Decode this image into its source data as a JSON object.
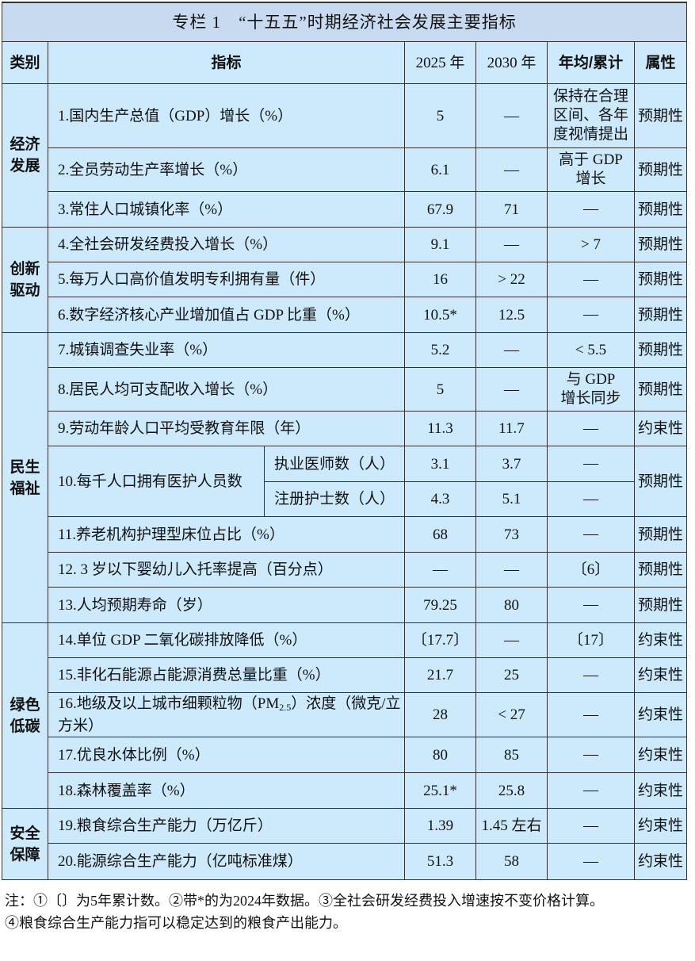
{
  "title": "专栏 1　“十五五”时期经济社会发展主要指标",
  "headers": {
    "category": "类别",
    "indicator": "指标",
    "y2025": "2025 年",
    "y2030": "2030 年",
    "annual": "年均/累计",
    "attribute": "属性"
  },
  "categories": [
    {
      "label": "经济\n发展",
      "rows": 3
    },
    {
      "label": "创新\n驱动",
      "rows": 3
    },
    {
      "label": "民生\n福祉",
      "rows": 8
    },
    {
      "label": "绿色\n低碳",
      "rows": 5
    },
    {
      "label": "安全\n保障",
      "rows": 2
    }
  ],
  "rows": [
    {
      "indicator": "1.国内生产总值（GDP）增长（%）",
      "y2025": "5",
      "y2030": "—",
      "annual": "保持在合理区间、各年度视情提出",
      "attribute": "预期性"
    },
    {
      "indicator": "2.全员劳动生产率增长（%）",
      "y2025": "6.1",
      "y2030": "—",
      "annual": "高于 GDP\n增长",
      "attribute": "预期性"
    },
    {
      "indicator": "3.常住人口城镇化率（%）",
      "y2025": "67.9",
      "y2030": "71",
      "annual": "—",
      "attribute": "预期性"
    },
    {
      "indicator": "4.全社会研发经费投入增长（%）",
      "y2025": "9.1",
      "y2030": "—",
      "annual": "> 7",
      "attribute": "预期性"
    },
    {
      "indicator": "5.每万人口高价值发明专利拥有量（件）",
      "y2025": "16",
      "y2030": "> 22",
      "annual": "—",
      "attribute": "预期性"
    },
    {
      "indicator": "6.数字经济核心产业增加值占 GDP 比重（%）",
      "y2025": "10.5*",
      "y2030": "12.5",
      "annual": "—",
      "attribute": "预期性"
    },
    {
      "indicator": "7.城镇调查失业率（%）",
      "y2025": "5.2",
      "y2030": "—",
      "annual": "< 5.5",
      "attribute": "预期性"
    },
    {
      "indicator": "8.居民人均可支配收入增长（%）",
      "y2025": "5",
      "y2030": "—",
      "annual": "与 GDP\n增长同步",
      "attribute": "预期性"
    },
    {
      "indicator": "9.劳动年龄人口平均受教育年限（年）",
      "y2025": "11.3",
      "y2030": "11.7",
      "annual": "—",
      "attribute": "约束性"
    },
    {
      "indicator": "10.每千人口拥有医护人员数",
      "sub": "执业医师数（人）",
      "y2025": "3.1",
      "y2030": "3.7",
      "annual": "—",
      "attribute": "预期性"
    },
    {
      "sub": "注册护士数（人）",
      "y2025": "4.3",
      "y2030": "5.1",
      "annual": "—"
    },
    {
      "indicator": "11.养老机构护理型床位占比（%）",
      "y2025": "68",
      "y2030": "73",
      "annual": "—",
      "attribute": "预期性"
    },
    {
      "indicator": "12. 3 岁以下婴幼儿入托率提高（百分点）",
      "y2025": "—",
      "y2030": "—",
      "annual": "〔6〕",
      "attribute": "预期性"
    },
    {
      "indicator": "13.人均预期寿命（岁）",
      "y2025": "79.25",
      "y2030": "80",
      "annual": "—",
      "attribute": "预期性"
    },
    {
      "indicator": "14.单位 GDP 二氧化碳排放降低（%）",
      "y2025": "〔17.7〕",
      "y2030": "—",
      "annual": "〔17〕",
      "attribute": "约束性"
    },
    {
      "indicator": "15.非化石能源占能源消费总量比重（%）",
      "y2025": "21.7",
      "y2030": "25",
      "annual": "—",
      "attribute": "约束性"
    },
    {
      "indicator_pre": "16.地级及以上城市细颗粒物（PM",
      "indicator_sub": "2.5",
      "indicator_post": "）浓度（微克/立方米）",
      "y2025": "28",
      "y2030": "< 27",
      "annual": "—",
      "attribute": "约束性"
    },
    {
      "indicator": "17.优良水体比例（%）",
      "y2025": "80",
      "y2030": "85",
      "annual": "—",
      "attribute": "约束性"
    },
    {
      "indicator": "18.森林覆盖率（%）",
      "y2025": "25.1*",
      "y2030": "25.8",
      "annual": "—",
      "attribute": "约束性"
    },
    {
      "indicator": "19.粮食综合生产能力（万亿斤）",
      "y2025": "1.39",
      "y2030": "1.45 左右",
      "annual": "—",
      "attribute": "约束性"
    },
    {
      "indicator": "20.能源综合生产能力（亿吨标准煤）",
      "y2025": "51.3",
      "y2030": "58",
      "annual": "—",
      "attribute": "约束性"
    }
  ],
  "notes": [
    "注：①〔〕为5年累计数。②带*的为2024年数据。③全社会研发经费投入增速按不变价格计算。",
    "④粮食综合生产能力指可以稳定达到的粮食产出能力。"
  ],
  "colors": {
    "title_bg": "#c8daef",
    "cell_bg": "#cdeafc",
    "border": "#333333"
  }
}
